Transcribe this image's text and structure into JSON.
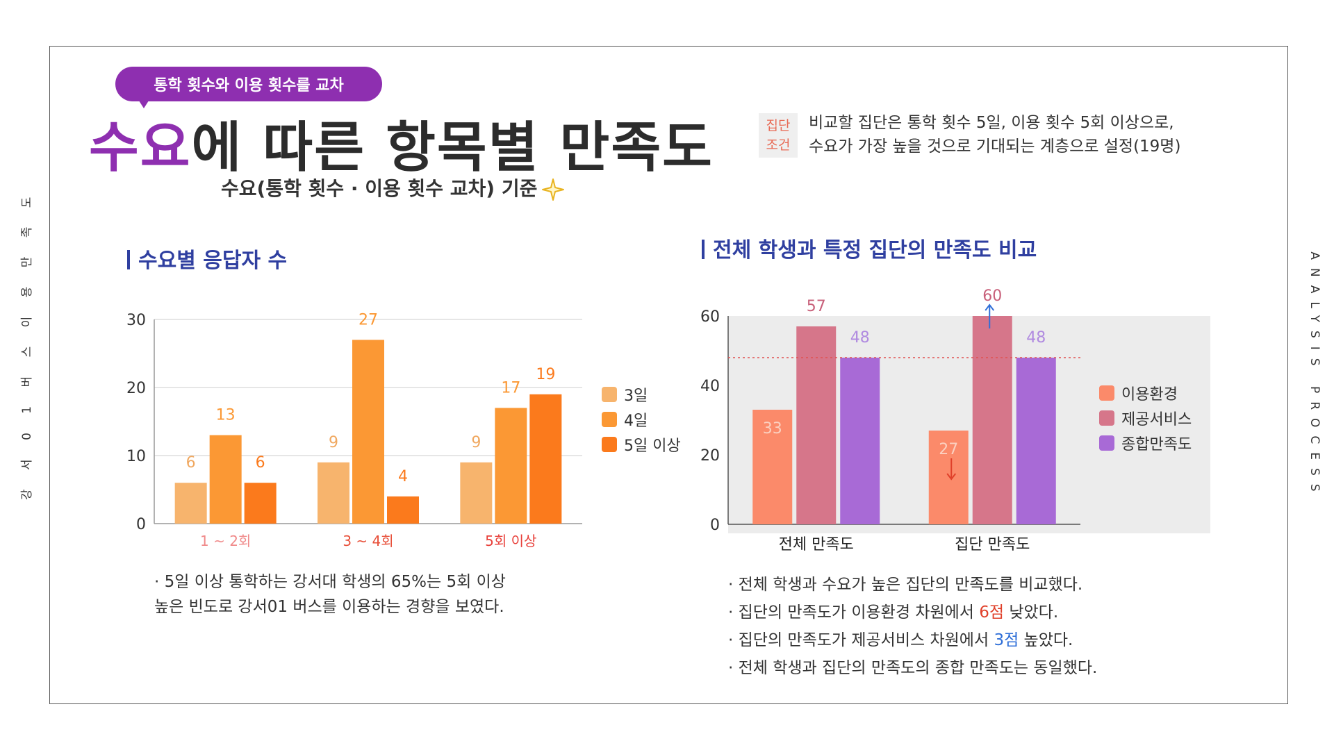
{
  "side_left_text": "강 서 0 1 버 스 이 용 만 족 도",
  "side_right_text": "ANALYSIS PROCESS",
  "header": {
    "pill": "통학 횟수와 이용 횟수를 교차",
    "title_accent": "수요",
    "title_rest": "에 따른 항목별 만족도",
    "subtitle": "수요(통학 횟수 · 이용 횟수 교차) 기준",
    "condition_tag_line1": "집단",
    "condition_tag_line2": "조건",
    "condition_line1": "비교할 집단은 통학 횟수 5일, 이용 횟수 5회 이상으로,",
    "condition_line2": "수요가 가장 높을 것으로 기대되는 계층으로 설정(19명)"
  },
  "left_section": {
    "title": "수요별 응답자 수",
    "note_line1": "· 5일 이상 통학하는 강서대 학생의 65%는 5회 이상",
    "note_line2": "높은 빈도로 강서01 버스를 이용하는 경향을 보였다."
  },
  "right_section": {
    "title": "전체 학생과 특정 집단의 만족도 비교",
    "note1": "· 전체 학생과 수요가 높은 집단의 만족도를 비교했다.",
    "note2_pre": "· 집단의 만족도가 이용환경 차원에서 ",
    "note2_hl": "6점",
    "note2_post": " 낮았다.",
    "note3_pre": "· 집단의 만족도가 제공서비스 차원에서 ",
    "note3_hl": "3점",
    "note3_post": " 높았다.",
    "note4": "· 전체 학생과 집단의 만족도의 종합 만족도는 동일했다."
  },
  "colors": {
    "purple": "#8e2fb0",
    "navy": "#2f3fa0",
    "orange_light": "#f7b46d",
    "orange_mid": "#fb9834",
    "orange_dark": "#fb7a1c",
    "salmon": "#fb8a6a",
    "rose": "#d6768a",
    "violet": "#a86ad6",
    "highlight_red": "#e0402a",
    "highlight_blue": "#2f6fd8"
  },
  "chart_data": [
    {
      "type": "bar",
      "categories": [
        "1 ~ 2회",
        "3 ~ 4회",
        "5회 이상"
      ],
      "series": [
        {
          "name": "3일",
          "values": [
            6,
            9,
            9
          ]
        },
        {
          "name": "4일",
          "values": [
            13,
            27,
            17
          ]
        },
        {
          "name": "5일 이상",
          "values": [
            6,
            4,
            19
          ]
        }
      ],
      "ylim": [
        0,
        30
      ],
      "yticks": [
        0,
        10,
        20,
        30
      ],
      "grid": true,
      "legend": "right"
    },
    {
      "type": "bar",
      "categories": [
        "전체 만족도",
        "집단 만족도"
      ],
      "series": [
        {
          "name": "이용환경",
          "values": [
            33,
            27
          ]
        },
        {
          "name": "제공서비스",
          "values": [
            57,
            60
          ]
        },
        {
          "name": "종합만족도",
          "values": [
            48,
            48
          ]
        }
      ],
      "ylim": [
        0,
        60
      ],
      "yticks": [
        0,
        20,
        40,
        60
      ],
      "reference_line": 48,
      "grid": false,
      "legend": "right"
    }
  ]
}
